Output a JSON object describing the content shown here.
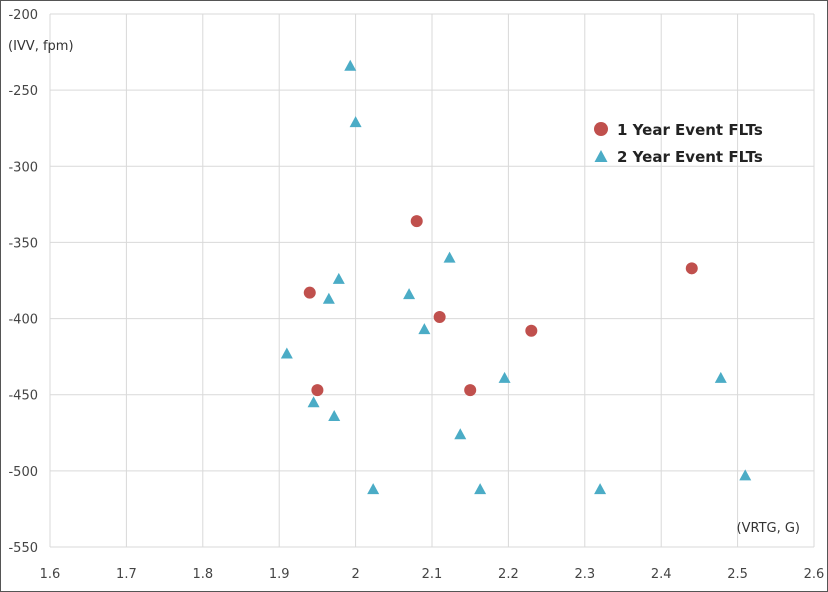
{
  "chart_data": {
    "type": "scatter",
    "xlabel": "(VRTG, G)",
    "ylabel": "(IVV, fpm)",
    "xlim": [
      1.6,
      2.6
    ],
    "ylim": [
      -550,
      -200
    ],
    "xticks": [
      1.6,
      1.7,
      1.8,
      1.9,
      2.0,
      2.1,
      2.2,
      2.3,
      2.4,
      2.5,
      2.6
    ],
    "yticks": [
      -200,
      -250,
      -300,
      -350,
      -400,
      -450,
      -500,
      -550
    ],
    "xtick_labels": [
      "1.6",
      "1.7",
      "1.8",
      "1.9",
      "2",
      "2.1",
      "2.2",
      "2.3",
      "2.4",
      "2.5",
      "2.6"
    ],
    "ytick_labels": [
      "-200",
      "-250",
      "-300",
      "-350",
      "-400",
      "-450",
      "-500",
      "-550"
    ],
    "grid": true,
    "legend_position": "top-right",
    "series": [
      {
        "name": "1 Year Event FLTs",
        "marker": "circle",
        "color": "#c0504d",
        "x": [
          1.94,
          1.95,
          2.08,
          2.11,
          2.15,
          2.23,
          2.44
        ],
        "y": [
          -383,
          -447,
          -336,
          -399,
          -447,
          -408,
          -367
        ]
      },
      {
        "name": "2 Year Event FLTs",
        "marker": "triangle",
        "color": "#4bacc6",
        "x": [
          1.91,
          1.945,
          1.965,
          1.972,
          1.978,
          1.993,
          2.0,
          2.023,
          2.07,
          2.09,
          2.123,
          2.137,
          2.163,
          2.195,
          2.32,
          2.478,
          2.51
        ],
        "y": [
          -423,
          -455,
          -387,
          -464,
          -374,
          -234,
          -271,
          -512,
          -384,
          -407,
          -360,
          -476,
          -512,
          -439,
          -512,
          -439,
          -503
        ]
      }
    ]
  }
}
